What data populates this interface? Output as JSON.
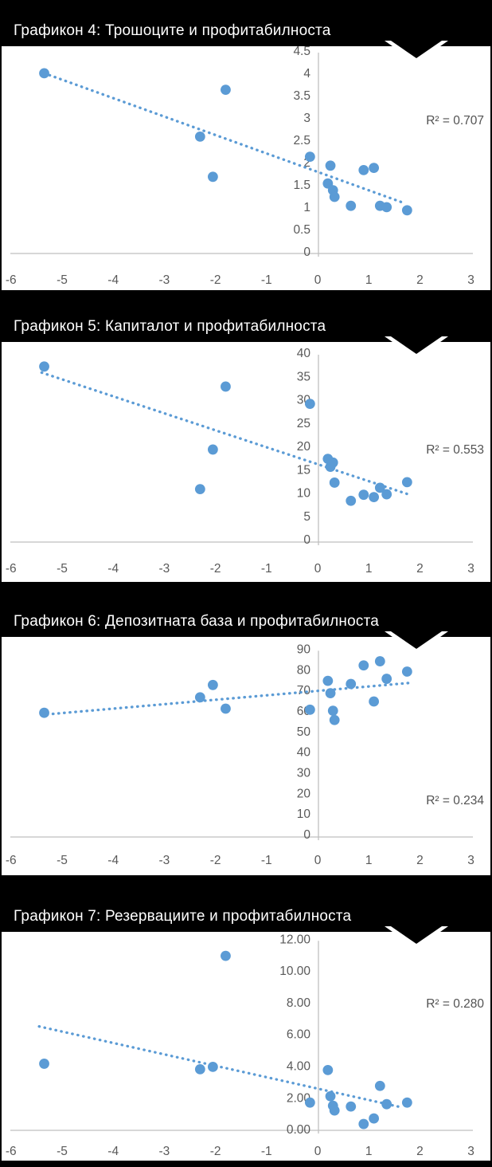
{
  "page": {
    "background_color": "#000000",
    "panel_background": "#FFFFFF",
    "panel_border_color": "#000000",
    "header_bg_color": "#000000",
    "header_text_color": "#FFFFFF",
    "point_color": "#5B9BD5",
    "trendline_color": "#5B9BD5",
    "axis_line_color": "#BFBFBF",
    "tick_label_color": "#595959",
    "r2_label_color": "#525252"
  },
  "chart_data": [
    {
      "type": "scatter",
      "title": "Графикон 4: Трошоците и профитабилноста",
      "r_squared_label": "R² = 0.707",
      "xlim": [
        -6,
        3
      ],
      "ylim": [
        0,
        4.5
      ],
      "grid": false,
      "legend": "none",
      "x_tick_values": [
        -6,
        -5,
        -4,
        -3,
        -2,
        -1,
        0,
        1,
        2,
        3
      ],
      "x_tick_labels": [
        "-6",
        "-5",
        "-4",
        "-3",
        "-2",
        "-1",
        "0",
        "1",
        "2",
        "3"
      ],
      "y_tick_values": [
        0,
        0.5,
        1,
        1.5,
        2,
        2.5,
        3,
        3.5,
        4,
        4.5
      ],
      "y_tick_labels": [
        "0",
        "0.5",
        "1",
        "1.5",
        "2",
        "2.5",
        "3",
        "3.5",
        "4",
        "4.5"
      ],
      "points": [
        [
          -5.35,
          4.02
        ],
        [
          -2.3,
          2.6
        ],
        [
          -2.05,
          1.7
        ],
        [
          -1.8,
          3.65
        ],
        [
          -0.15,
          2.15
        ],
        [
          0.2,
          1.55
        ],
        [
          0.25,
          1.95
        ],
        [
          0.3,
          1.4
        ],
        [
          0.33,
          1.25
        ],
        [
          0.65,
          1.05
        ],
        [
          0.9,
          1.85
        ],
        [
          1.1,
          1.9
        ],
        [
          1.22,
          1.05
        ],
        [
          1.35,
          1.02
        ],
        [
          1.75,
          0.95
        ]
      ],
      "trendline": {
        "style": "dotted",
        "x1": -5.35,
        "y1": 4.02,
        "x2": 1.72,
        "y2": 1.1
      }
    },
    {
      "type": "scatter",
      "title": "Графикон 5: Капиталот и профитабилноста",
      "r_squared_label": "R² = 0.553",
      "xlim": [
        -6,
        3
      ],
      "ylim": [
        0,
        40
      ],
      "grid": false,
      "legend": "none",
      "x_tick_values": [
        -6,
        -5,
        -4,
        -3,
        -2,
        -1,
        0,
        1,
        2,
        3
      ],
      "x_tick_labels": [
        "-6",
        "-5",
        "-4",
        "-3",
        "-2",
        "-1",
        "0",
        "1",
        "2",
        "3"
      ],
      "y_tick_values": [
        0,
        5,
        10,
        15,
        20,
        25,
        30,
        35,
        40
      ],
      "y_tick_labels": [
        "0",
        "5",
        "10",
        "15",
        "20",
        "25",
        "30",
        "35",
        "40"
      ],
      "points": [
        [
          -5.35,
          37.3
        ],
        [
          -2.3,
          11
        ],
        [
          -2.05,
          19.5
        ],
        [
          -1.8,
          33
        ],
        [
          -0.15,
          29.3
        ],
        [
          0.2,
          17.5
        ],
        [
          0.25,
          15.8
        ],
        [
          0.3,
          16.7
        ],
        [
          0.33,
          12.4
        ],
        [
          0.65,
          8.5
        ],
        [
          0.9,
          9.8
        ],
        [
          1.1,
          9.3
        ],
        [
          1.22,
          11.3
        ],
        [
          1.35,
          9.9
        ],
        [
          1.75,
          12.5
        ]
      ],
      "trendline": {
        "style": "dotted",
        "x1": -5.4,
        "y1": 36,
        "x2": 1.8,
        "y2": 9.8
      }
    },
    {
      "type": "scatter",
      "title": "Графикон 6: Депозитната база и профитабилноста",
      "r_squared_label": "R² = 0.234",
      "xlim": [
        -6,
        3
      ],
      "ylim": [
        0,
        90
      ],
      "grid": false,
      "legend": "none",
      "x_tick_values": [
        -6,
        -5,
        -4,
        -3,
        -2,
        -1,
        0,
        1,
        2,
        3
      ],
      "x_tick_labels": [
        "-6",
        "-5",
        "-4",
        "-3",
        "-2",
        "-1",
        "0",
        "1",
        "2",
        "3"
      ],
      "y_tick_values": [
        0,
        10,
        20,
        30,
        40,
        50,
        60,
        70,
        80,
        90
      ],
      "y_tick_labels": [
        "0",
        "10",
        "20",
        "30",
        "40",
        "50",
        "60",
        "70",
        "80",
        "90"
      ],
      "points": [
        [
          -5.35,
          59.5
        ],
        [
          -2.3,
          67
        ],
        [
          -2.05,
          73
        ],
        [
          -1.8,
          61.5
        ],
        [
          -0.15,
          61
        ],
        [
          0.2,
          75
        ],
        [
          0.25,
          69
        ],
        [
          0.3,
          60.5
        ],
        [
          0.33,
          56
        ],
        [
          0.65,
          73.5
        ],
        [
          0.9,
          82.5
        ],
        [
          1.1,
          65
        ],
        [
          1.22,
          84.5
        ],
        [
          1.35,
          76
        ],
        [
          1.75,
          79.5
        ]
      ],
      "trendline": {
        "style": "dotted",
        "x1": -5.4,
        "y1": 58.5,
        "x2": 1.8,
        "y2": 74
      }
    },
    {
      "type": "scatter",
      "title": "Графикон 7: Резервациите и профитабилноста",
      "r_squared_label": "R² = 0.280",
      "xlim": [
        -6,
        3
      ],
      "ylim": [
        0,
        12
      ],
      "grid": false,
      "legend": "none",
      "x_tick_values": [
        -6,
        -5,
        -4,
        -3,
        -2,
        -1,
        0,
        1,
        2,
        3
      ],
      "x_tick_labels": [
        "-6",
        "-5",
        "-4",
        "-3",
        "-2",
        "-1",
        "0",
        "1",
        "2",
        "3"
      ],
      "y_tick_values": [
        0,
        2,
        4,
        6,
        8,
        10,
        12
      ],
      "y_tick_labels": [
        "0.00",
        "2.00",
        "4.00",
        "6.00",
        "8.00",
        "10.00",
        "12.00"
      ],
      "points": [
        [
          -5.35,
          4.2
        ],
        [
          -2.3,
          3.85
        ],
        [
          -2.05,
          4.0
        ],
        [
          -1.8,
          11.0
        ],
        [
          -0.15,
          1.75
        ],
        [
          0.2,
          3.8
        ],
        [
          0.25,
          2.15
        ],
        [
          0.3,
          1.55
        ],
        [
          0.33,
          1.25
        ],
        [
          0.65,
          1.5
        ],
        [
          0.9,
          0.4
        ],
        [
          1.1,
          0.75
        ],
        [
          1.22,
          2.8
        ],
        [
          1.35,
          1.65
        ],
        [
          1.75,
          1.75
        ]
      ],
      "trendline": {
        "style": "dotted",
        "x1": -5.45,
        "y1": 6.55,
        "x2": 1.67,
        "y2": 1.43
      }
    }
  ]
}
